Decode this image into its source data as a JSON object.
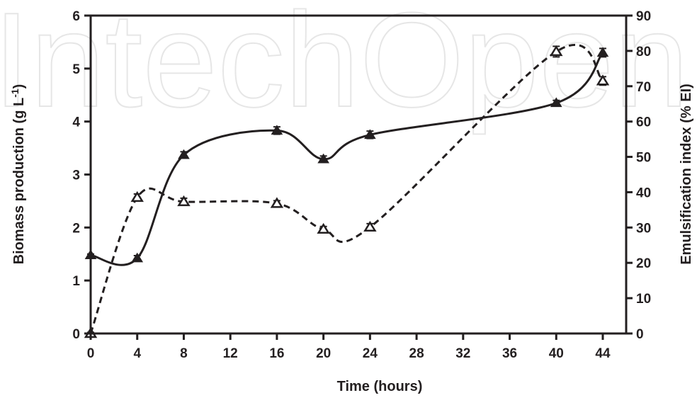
{
  "chart_data": {
    "type": "line",
    "watermark": "IntechOpen",
    "xlabel": "Time (hours)",
    "ylabel_left": "Biomass production (g L-1)",
    "ylabel_left_main": "Biomass production (g L",
    "ylabel_left_sup": "-1",
    "ylabel_left_close": ")",
    "ylabel_right": "Emulsification index (% EI)",
    "xlim": [
      0,
      46
    ],
    "xticks": [
      0,
      4,
      8,
      12,
      16,
      20,
      24,
      28,
      32,
      36,
      40,
      44
    ],
    "ylim_left": [
      0,
      6
    ],
    "yticks_left": [
      0,
      1,
      2,
      3,
      4,
      5,
      6
    ],
    "ylim_right": [
      0,
      90
    ],
    "yticks_right": [
      0,
      10,
      20,
      30,
      40,
      50,
      60,
      70,
      80,
      90
    ],
    "grid": false,
    "series": [
      {
        "axis": "left",
        "style": "solid",
        "marker": "filled-triangle",
        "x": [
          0,
          4,
          8,
          16,
          20,
          24,
          40,
          44
        ],
        "y": [
          1.48,
          1.42,
          3.37,
          3.83,
          3.29,
          3.75,
          4.35,
          5.3
        ],
        "err": [
          0.02,
          0.05,
          0.06,
          0.07,
          0.06,
          0.07,
          0.05,
          0.08
        ]
      },
      {
        "axis": "right",
        "style": "dashed",
        "marker": "open-triangle",
        "x": [
          0,
          4,
          8,
          16,
          20,
          24,
          40,
          44
        ],
        "y": [
          0,
          38.5,
          37.3,
          36.8,
          29.5,
          30.1,
          79.8,
          71.5
        ],
        "err": [
          0.3,
          1.0,
          1.0,
          0.8,
          0.8,
          1.0,
          1.5,
          1.2
        ]
      }
    ]
  }
}
